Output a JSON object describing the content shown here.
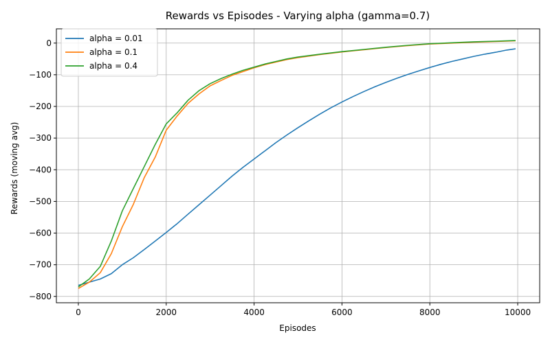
{
  "chart_data": {
    "type": "line",
    "title": "Rewards vs Episodes - Varying alpha (gamma=0.7)",
    "xlabel": "Episodes",
    "ylabel": "Rewards (moving avg)",
    "xlim": [
      -500,
      10500
    ],
    "ylim": [
      -820,
      45
    ],
    "xticks": [
      0,
      2000,
      4000,
      6000,
      8000,
      10000
    ],
    "xtick_labels": [
      "0",
      "2000",
      "4000",
      "6000",
      "8000",
      "10000"
    ],
    "yticks": [
      -800,
      -700,
      -600,
      -500,
      -400,
      -300,
      -200,
      -100,
      0
    ],
    "ytick_labels": [
      "−800",
      "−700",
      "−600",
      "−500",
      "−400",
      "−300",
      "−200",
      "−100",
      "0"
    ],
    "grid": true,
    "legend_position": "top-left",
    "series": [
      {
        "name": "alpha = 0.01",
        "color": "#1f77b4",
        "x": [
          0,
          250,
          500,
          750,
          1000,
          1250,
          1500,
          1750,
          2000,
          2250,
          2500,
          2750,
          3000,
          3250,
          3500,
          3750,
          4000,
          4250,
          4500,
          4750,
          5000,
          5250,
          5500,
          5750,
          6000,
          6250,
          6500,
          6750,
          7000,
          7250,
          7500,
          7750,
          8000,
          8250,
          8500,
          8750,
          9000,
          9250,
          9500,
          9750,
          9950
        ],
        "y": [
          -765,
          -755,
          -745,
          -728,
          -700,
          -678,
          -652,
          -625,
          -598,
          -570,
          -540,
          -510,
          -480,
          -450,
          -420,
          -392,
          -366,
          -340,
          -314,
          -290,
          -267,
          -245,
          -224,
          -204,
          -186,
          -169,
          -153,
          -138,
          -124,
          -111,
          -99,
          -88,
          -77,
          -67,
          -58,
          -50,
          -42,
          -35,
          -29,
          -22,
          -18
        ]
      },
      {
        "name": "alpha = 0.1",
        "color": "#ff7f0e",
        "x": [
          0,
          250,
          500,
          750,
          1000,
          1250,
          1500,
          1750,
          2000,
          2250,
          2500,
          2750,
          3000,
          3250,
          3500,
          3750,
          4000,
          4250,
          4500,
          4750,
          5000,
          5500,
          6000,
          6500,
          7000,
          7500,
          8000,
          8500,
          9000,
          9500,
          9950
        ],
        "y": [
          -775,
          -755,
          -725,
          -665,
          -580,
          -510,
          -425,
          -360,
          -275,
          -230,
          -190,
          -160,
          -135,
          -118,
          -102,
          -90,
          -78,
          -68,
          -60,
          -52,
          -46,
          -36,
          -28,
          -21,
          -14,
          -8,
          -3,
          0,
          3,
          5,
          7
        ]
      },
      {
        "name": "alpha = 0.4",
        "color": "#2ca02c",
        "x": [
          0,
          250,
          500,
          750,
          1000,
          1250,
          1500,
          1750,
          2000,
          2250,
          2500,
          2750,
          3000,
          3250,
          3500,
          3750,
          4000,
          4250,
          4500,
          4750,
          5000,
          5500,
          6000,
          6500,
          7000,
          7500,
          8000,
          8500,
          9000,
          9500,
          9950
        ],
        "y": [
          -770,
          -745,
          -705,
          -625,
          -530,
          -460,
          -390,
          -320,
          -255,
          -220,
          -180,
          -150,
          -128,
          -112,
          -98,
          -86,
          -76,
          -66,
          -58,
          -50,
          -44,
          -35,
          -27,
          -20,
          -13,
          -7,
          -2,
          1,
          4,
          6,
          8
        ]
      }
    ]
  }
}
